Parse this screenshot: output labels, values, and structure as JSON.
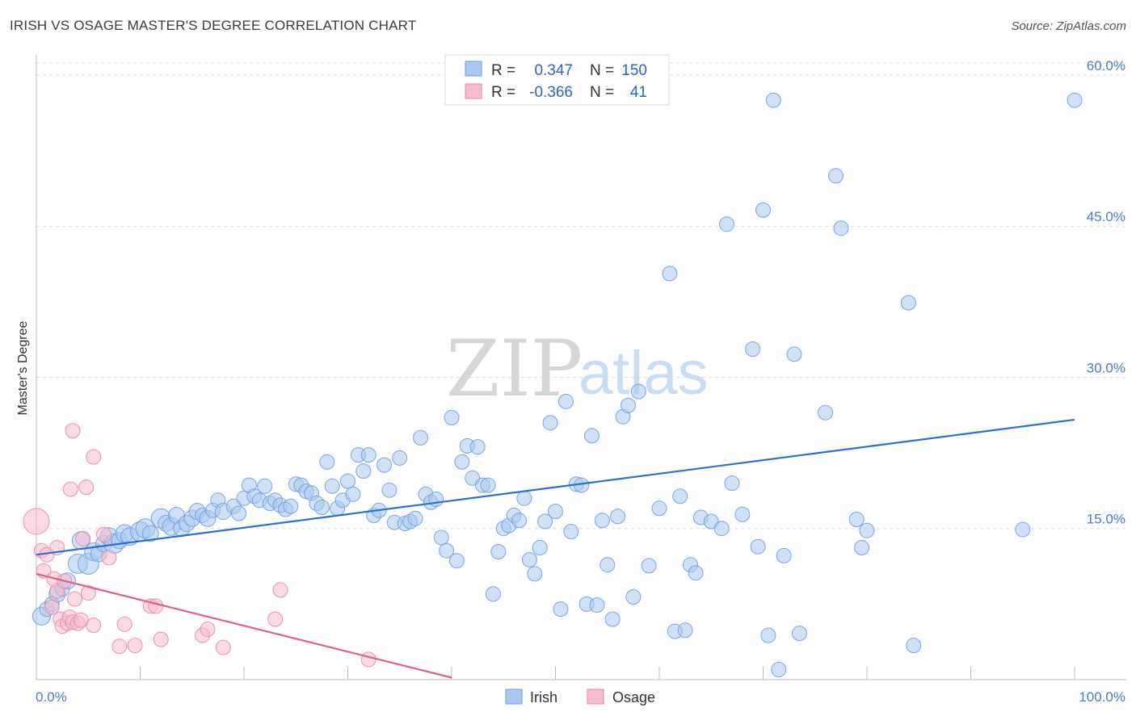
{
  "header": {
    "title": "IRISH VS OSAGE MASTER'S DEGREE CORRELATION CHART",
    "source": "Source: ZipAtlas.com"
  },
  "watermark": {
    "zip": "ZIP",
    "atlas": "atlas"
  },
  "legend": {
    "rows": [
      {
        "r_label": "R =",
        "r_value": "0.347",
        "n_label": "N =",
        "n_value": "150",
        "color": "#a9c8f0",
        "border": "#6f9ddc"
      },
      {
        "r_label": "R =",
        "r_value": "-0.366",
        "n_label": "N =",
        "n_value": "41",
        "color": "#f7bccd",
        "border": "#e58aa6"
      }
    ]
  },
  "bottom_legend": [
    {
      "label": "Irish",
      "color": "#a9c8f0",
      "border": "#6f9ddc"
    },
    {
      "label": "Osage",
      "color": "#f7bccd",
      "border": "#e58aa6"
    }
  ],
  "chart_data": {
    "type": "scatter",
    "title": "IRISH VS OSAGE MASTER'S DEGREE CORRELATION CHART",
    "xlabel": "",
    "ylabel": "Master's Degree",
    "xlim": [
      0,
      100
    ],
    "ylim": [
      0,
      62
    ],
    "x_ticks": [
      {
        "value": 0,
        "label": "0.0%"
      },
      {
        "value": 100,
        "label": "100.0%"
      }
    ],
    "y_ticks": [
      {
        "value": 15,
        "label": "15.0%"
      },
      {
        "value": 30,
        "label": "30.0%"
      },
      {
        "value": 45,
        "label": "45.0%"
      },
      {
        "value": 60,
        "label": "60.0%"
      }
    ],
    "grid": "horizontal dashed",
    "legend_position": "top-center",
    "series": [
      {
        "name": "Irish",
        "color": "#6f9ddc",
        "fill": "#a9c8f0",
        "trend": [
          [
            0,
            12.4
          ],
          [
            100,
            25.8
          ]
        ],
        "points": [
          [
            0.5,
            6.3,
            11
          ],
          [
            1,
            7,
            9
          ],
          [
            1.5,
            7.5,
            9
          ],
          [
            2,
            8.5,
            10
          ],
          [
            2.5,
            9,
            9
          ],
          [
            3,
            9.8,
            10
          ],
          [
            4,
            11.5,
            12
          ],
          [
            4.3,
            13.8,
            11
          ],
          [
            5,
            11.5,
            13
          ],
          [
            5.5,
            12.7,
            11
          ],
          [
            6,
            12.5,
            10
          ],
          [
            6.5,
            13.5,
            10
          ],
          [
            7,
            14.2,
            11
          ],
          [
            7.5,
            13.5,
            12
          ],
          [
            8,
            13.8,
            10
          ],
          [
            8.5,
            14.5,
            11
          ],
          [
            9,
            14.2,
            11
          ],
          [
            10,
            14.7,
            12
          ],
          [
            10.5,
            15,
            12
          ],
          [
            11,
            14.5,
            10
          ],
          [
            12,
            16,
            12
          ],
          [
            12.5,
            15.5,
            10
          ],
          [
            13,
            15.2,
            11
          ],
          [
            13.5,
            16.3,
            10
          ],
          [
            14,
            15,
            10
          ],
          [
            14.5,
            15.5,
            10
          ],
          [
            15,
            16,
            10
          ],
          [
            15.5,
            16.7,
            10
          ],
          [
            16,
            16.3,
            9
          ],
          [
            16.5,
            16,
            10
          ],
          [
            17,
            16.8,
            9
          ],
          [
            17.5,
            17.8,
            9
          ],
          [
            18,
            16.7,
            10
          ],
          [
            19,
            17.2,
            9
          ],
          [
            19.5,
            16.5,
            9
          ],
          [
            20,
            18,
            9
          ],
          [
            20.5,
            19.3,
            9
          ],
          [
            21,
            18.2,
            9
          ],
          [
            21.5,
            17.8,
            9
          ],
          [
            22,
            19.2,
            9
          ],
          [
            22.5,
            17.5,
            9
          ],
          [
            23,
            17.8,
            9
          ],
          [
            23.5,
            17.3,
            9
          ],
          [
            24,
            16.9,
            9
          ],
          [
            24.5,
            17.2,
            9
          ],
          [
            25,
            19.4,
            9
          ],
          [
            25.5,
            19.3,
            9
          ],
          [
            26,
            18.7,
            9
          ],
          [
            26.5,
            18.5,
            9
          ],
          [
            27,
            17.5,
            9
          ],
          [
            27.5,
            17.1,
            9
          ],
          [
            28,
            21.6,
            9
          ],
          [
            28.5,
            19.2,
            9
          ],
          [
            29,
            17,
            9
          ],
          [
            29.5,
            17.8,
            9
          ],
          [
            30,
            19.7,
            9
          ],
          [
            30.5,
            18.4,
            9
          ],
          [
            31,
            22.3,
            9
          ],
          [
            31.5,
            20.7,
            9
          ],
          [
            32,
            22.3,
            9
          ],
          [
            32.5,
            16.3,
            9
          ],
          [
            33,
            16.8,
            9
          ],
          [
            33.5,
            21.3,
            9
          ],
          [
            34,
            18.8,
            9
          ],
          [
            34.5,
            15.6,
            9
          ],
          [
            35,
            22,
            9
          ],
          [
            35.5,
            15.5,
            9
          ],
          [
            36,
            15.7,
            9
          ],
          [
            36.5,
            16,
            9
          ],
          [
            37,
            24,
            9
          ],
          [
            37.5,
            18.4,
            9
          ],
          [
            38,
            17.6,
            9
          ],
          [
            38.5,
            17.9,
            9
          ],
          [
            39,
            14.1,
            9
          ],
          [
            39.5,
            12.8,
            9
          ],
          [
            40,
            26,
            9
          ],
          [
            40.5,
            11.8,
            9
          ],
          [
            41,
            21.6,
            9
          ],
          [
            41.5,
            23.2,
            9
          ],
          [
            42,
            20,
            9
          ],
          [
            42.5,
            23.1,
            9
          ],
          [
            43,
            19.3,
            9
          ],
          [
            43.5,
            19.3,
            9
          ],
          [
            44,
            8.5,
            9
          ],
          [
            44.5,
            12.7,
            9
          ],
          [
            45,
            15,
            9
          ],
          [
            45.5,
            15.3,
            9
          ],
          [
            46,
            16.3,
            9
          ],
          [
            46.5,
            15.8,
            9
          ],
          [
            47,
            18,
            9
          ],
          [
            47.5,
            11.9,
            9
          ],
          [
            48,
            10.5,
            9
          ],
          [
            48.5,
            13.1,
            9
          ],
          [
            49,
            15.7,
            9
          ],
          [
            49.5,
            25.5,
            9
          ],
          [
            50,
            16.7,
            9
          ],
          [
            50.5,
            7,
            9
          ],
          [
            51,
            27.6,
            9
          ],
          [
            51.5,
            14.7,
            9
          ],
          [
            52,
            19.4,
            9
          ],
          [
            52.5,
            19.3,
            9
          ],
          [
            53,
            7.5,
            9
          ],
          [
            53.5,
            24.2,
            9
          ],
          [
            54,
            7.4,
            9
          ],
          [
            54.5,
            15.8,
            9
          ],
          [
            55,
            11.4,
            9
          ],
          [
            55.5,
            6,
            9
          ],
          [
            56,
            16.2,
            9
          ],
          [
            56.5,
            26.1,
            9
          ],
          [
            57,
            27.2,
            9
          ],
          [
            57.5,
            8.2,
            9
          ],
          [
            58,
            28.6,
            9
          ],
          [
            59,
            11.3,
            9
          ],
          [
            60,
            17,
            9
          ],
          [
            61,
            40.3,
            9
          ],
          [
            61.5,
            4.8,
            9
          ],
          [
            62,
            18.2,
            9
          ],
          [
            62.5,
            4.9,
            9
          ],
          [
            63,
            11.4,
            9
          ],
          [
            63.5,
            10.6,
            9
          ],
          [
            64,
            16.1,
            9
          ],
          [
            65,
            15.7,
            9
          ],
          [
            66,
            15,
            9
          ],
          [
            66.5,
            45.2,
            9
          ],
          [
            67,
            19.5,
            9
          ],
          [
            68,
            16.4,
            9
          ],
          [
            69,
            32.8,
            9
          ],
          [
            69.5,
            13.2,
            9
          ],
          [
            70,
            46.6,
            9
          ],
          [
            70.5,
            4.4,
            9
          ],
          [
            71,
            57.5,
            9
          ],
          [
            71.5,
            1,
            9
          ],
          [
            72,
            12.3,
            9
          ],
          [
            73,
            32.3,
            9
          ],
          [
            73.5,
            4.6,
            9
          ],
          [
            76,
            26.5,
            9
          ],
          [
            77,
            50,
            9
          ],
          [
            77.5,
            44.8,
            9
          ],
          [
            79,
            15.9,
            9
          ],
          [
            79.5,
            13.1,
            9
          ],
          [
            80,
            14.8,
            9
          ],
          [
            84,
            37.4,
            9
          ],
          [
            84.5,
            3.4,
            9
          ],
          [
            95,
            14.9,
            9
          ],
          [
            100,
            57.5,
            9
          ]
        ]
      },
      {
        "name": "Osage",
        "color": "#e58aa6",
        "fill": "#f7bccd",
        "trend": [
          [
            0,
            10.5
          ],
          [
            40,
            0.2
          ]
        ],
        "points": [
          [
            0,
            15.7,
            16
          ],
          [
            0.5,
            12.8,
            9
          ],
          [
            0.7,
            10.8,
            9
          ],
          [
            1,
            12.4,
            9
          ],
          [
            1.5,
            7.2,
            9
          ],
          [
            1.7,
            10,
            9
          ],
          [
            2,
            13.1,
            9
          ],
          [
            2,
            8.8,
            9
          ],
          [
            2.3,
            6,
            9
          ],
          [
            2.5,
            5.3,
            9
          ],
          [
            2.7,
            9.8,
            9
          ],
          [
            3,
            5.6,
            9
          ],
          [
            3.2,
            6.2,
            9
          ],
          [
            3.3,
            18.9,
            9
          ],
          [
            3.5,
            5.7,
            9
          ],
          [
            3.7,
            8,
            9
          ],
          [
            3.5,
            24.7,
            9
          ],
          [
            4,
            5.6,
            9
          ],
          [
            4.3,
            5.9,
            9
          ],
          [
            4.5,
            14,
            9
          ],
          [
            4.8,
            19.1,
            9
          ],
          [
            5,
            8.6,
            9
          ],
          [
            5.5,
            5.4,
            9
          ],
          [
            5.5,
            22.1,
            9
          ],
          [
            6.5,
            14.4,
            9
          ],
          [
            7,
            12.1,
            9
          ],
          [
            8,
            3.3,
            9
          ],
          [
            8.5,
            5.5,
            9
          ],
          [
            9.5,
            3.4,
            9
          ],
          [
            11,
            7.3,
            9
          ],
          [
            11.5,
            7.3,
            9
          ],
          [
            12,
            4,
            9
          ],
          [
            16,
            4.4,
            9
          ],
          [
            16.5,
            5,
            9
          ],
          [
            18,
            3.2,
            9
          ],
          [
            23,
            6,
            9
          ],
          [
            23.5,
            8.9,
            9
          ],
          [
            32,
            2,
            9
          ]
        ]
      }
    ]
  }
}
